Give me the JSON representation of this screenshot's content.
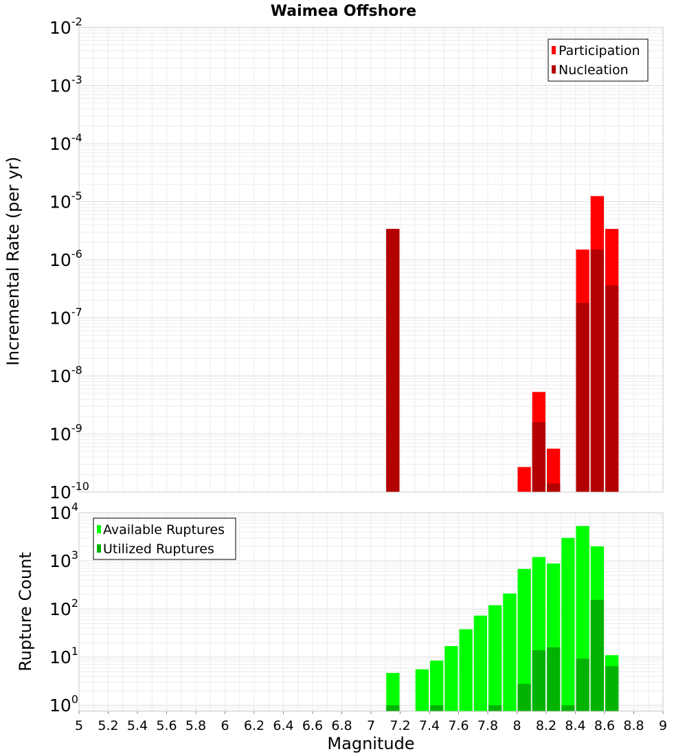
{
  "chart_data": [
    {
      "type": "bar",
      "title": "Waimea Offshore",
      "ylabel": "Incremental Rate (per yr)",
      "xlabel": "",
      "y_scale": "log",
      "ylim": [
        1e-10,
        0.01
      ],
      "xlim": [
        5,
        9
      ],
      "bar_width": 0.1,
      "grid": true,
      "legend_position": "top-right",
      "y_tick_labels": [
        "10",
        "10",
        "10",
        "10",
        "10",
        "10",
        "10",
        "10",
        "10"
      ],
      "y_tick_exponents": [
        "-10",
        "-9",
        "-8",
        "-7",
        "-6",
        "-5",
        "-4",
        "-3",
        "-2"
      ],
      "series": [
        {
          "name": "Participation",
          "color": "#ff0000",
          "x": [
            7.15,
            8.05,
            8.15,
            8.25,
            8.45,
            8.55,
            8.65
          ],
          "values": [
            3.4e-06,
            2.7e-10,
            5.3e-09,
            5.6e-10,
            1.5e-06,
            1.25e-05,
            3.4e-06
          ]
        },
        {
          "name": "Nucleation",
          "color": "#b30000",
          "x": [
            7.15,
            8.15,
            8.25,
            8.45,
            8.55,
            8.65
          ],
          "values": [
            3.4e-06,
            1.6e-09,
            1.4e-10,
            1.8e-07,
            1.5e-06,
            3.6e-07
          ]
        }
      ]
    },
    {
      "type": "bar",
      "title": "",
      "ylabel": "Rupture Count",
      "xlabel": "Magnitude",
      "y_scale": "log",
      "ylim": [
        0.75,
        10000
      ],
      "xlim": [
        5,
        9
      ],
      "bar_width": 0.1,
      "grid": true,
      "legend_position": "top-left",
      "y_tick_labels": [
        "10",
        "10",
        "10",
        "10",
        "10"
      ],
      "y_tick_exponents": [
        "0",
        "1",
        "2",
        "3",
        "4"
      ],
      "x_tick_labels": [
        "5",
        "5.2",
        "5.4",
        "5.6",
        "5.8",
        "6",
        "6.2",
        "6.4",
        "6.6",
        "6.8",
        "7",
        "7.2",
        "7.4",
        "7.6",
        "7.8",
        "8",
        "8.2",
        "8.4",
        "8.6",
        "8.8",
        "9"
      ],
      "series": [
        {
          "name": "Available Ruptures",
          "color": "#00ff00",
          "x": [
            7.15,
            7.35,
            7.45,
            7.55,
            7.65,
            7.75,
            7.85,
            7.95,
            8.05,
            8.15,
            8.25,
            8.35,
            8.45,
            8.55,
            8.65
          ],
          "values": [
            4.7,
            5.6,
            8.5,
            17,
            38,
            73,
            120,
            210,
            680,
            1200,
            880,
            3000,
            5300,
            2000,
            11
          ]
        },
        {
          "name": "Utilized Ruptures",
          "color": "#00b300",
          "x": [
            7.15,
            7.45,
            7.85,
            8.05,
            8.15,
            8.25,
            8.35,
            8.45,
            8.55,
            8.65
          ],
          "values": [
            1,
            1,
            1,
            2.8,
            14,
            16,
            1,
            9.3,
            155,
            6.5
          ]
        }
      ]
    }
  ]
}
